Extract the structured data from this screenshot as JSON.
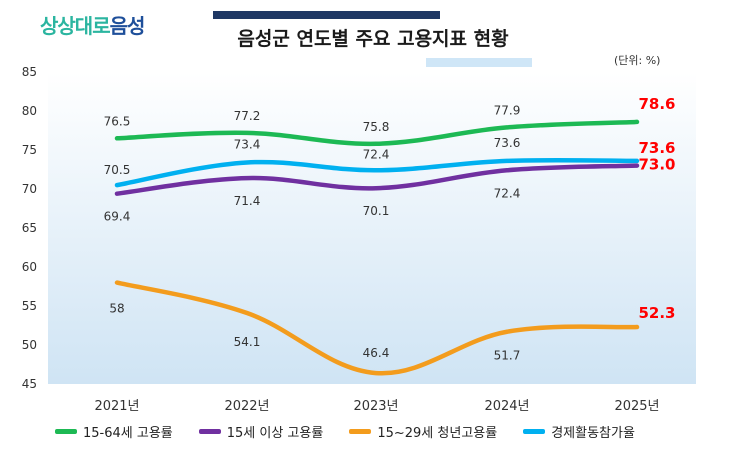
{
  "header": {
    "logo_part1": "상상대로",
    "logo_part2": "음성",
    "title": "음성군 연도별 주요 고용지표 현황",
    "unit": "(단위: %)"
  },
  "colors": {
    "green": "#1db954",
    "purple": "#7030a0",
    "orange": "#f39c1d",
    "sky": "#00b0f0",
    "red": "#ff0000"
  },
  "chart_data": {
    "type": "line",
    "categories": [
      "2021년",
      "2022년",
      "2023년",
      "2024년",
      "2025년"
    ],
    "ylim": [
      45,
      85
    ],
    "yticks": [
      "45",
      "50",
      "55",
      "60",
      "65",
      "70",
      "75",
      "80",
      "85"
    ],
    "series": [
      {
        "name": "15-64세 고용률",
        "color": "#1db954",
        "values": [
          76.5,
          77.2,
          75.8,
          77.9,
          78.6
        ],
        "labels": [
          "76.5",
          "77.2",
          "75.8",
          "77.9",
          "78.6"
        ]
      },
      {
        "name": "15세 이상 고용률",
        "color": "#7030a0",
        "values": [
          69.4,
          71.4,
          70.1,
          72.4,
          73.0
        ],
        "labels": [
          "69.4",
          "71.4",
          "70.1",
          "72.4",
          "73.0"
        ]
      },
      {
        "name": "15~29세 청년고용률",
        "color": "#f39c1d",
        "values": [
          58,
          54.1,
          46.4,
          51.7,
          52.3
        ],
        "labels": [
          "58",
          "54.1",
          "46.4",
          "51.7",
          "52.3"
        ]
      },
      {
        "name": "경제활동참가율",
        "color": "#00b0f0",
        "values": [
          70.5,
          73.4,
          72.4,
          73.6,
          73.6
        ],
        "labels": [
          "70.5",
          "73.4",
          "72.4",
          "73.6",
          "73.6"
        ]
      }
    ]
  }
}
